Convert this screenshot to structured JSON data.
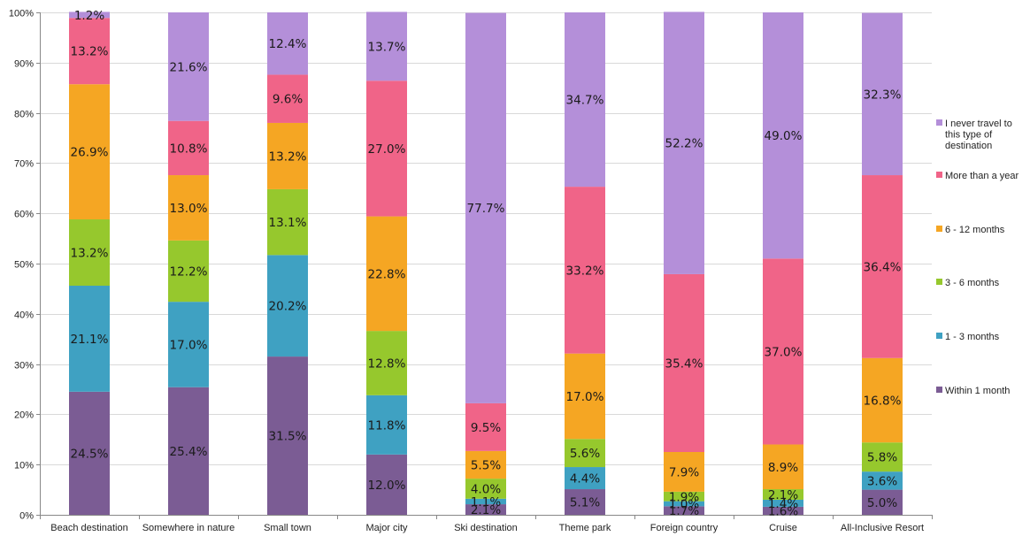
{
  "chart_data": {
    "type": "bar",
    "stacked": true,
    "normalized": true,
    "categories": [
      "Beach destination",
      "Somewhere in nature",
      "Small town",
      "Major city",
      "Ski destination",
      "Theme park",
      "Foreign country",
      "Cruise",
      "All-Inclusive Resort"
    ],
    "ylim": [
      0,
      100
    ],
    "yticks": [
      "0%",
      "10%",
      "20%",
      "30%",
      "40%",
      "50%",
      "60%",
      "70%",
      "80%",
      "90%",
      "100%"
    ],
    "grid": true,
    "legend_position": "right",
    "series": [
      {
        "name": "Within 1 month",
        "color": "#7b5c94",
        "values": [
          24.5,
          25.4,
          31.5,
          12.0,
          2.1,
          5.1,
          1.7,
          1.6,
          5.0
        ],
        "labels": [
          "24.5%",
          "25.4%",
          "31.5%",
          "12.0%",
          "2.1%",
          "5.1%",
          "1.7%",
          "1.6%",
          "5.0%"
        ]
      },
      {
        "name": "1 - 3 months",
        "color": "#3fa1c2",
        "values": [
          21.1,
          17.0,
          20.2,
          11.8,
          1.1,
          4.4,
          1.0,
          1.4,
          3.6
        ],
        "labels": [
          "21.1%",
          "17.0%",
          "20.2%",
          "11.8%",
          "1.1%",
          "4.4%",
          "1.0%",
          "1.4%",
          "3.6%"
        ]
      },
      {
        "name": "3 - 6 months",
        "color": "#96c82d",
        "values": [
          13.2,
          12.2,
          13.1,
          12.8,
          4.0,
          5.6,
          1.9,
          2.1,
          5.8
        ],
        "labels": [
          "13.2%",
          "12.2%",
          "13.1%",
          "12.8%",
          "4.0%",
          "5.6%",
          "1.9%",
          "2.1%",
          "5.8%"
        ]
      },
      {
        "name": "6 - 12 months",
        "color": "#f5a623",
        "values": [
          26.9,
          13.0,
          13.2,
          22.8,
          5.5,
          17.0,
          7.9,
          8.9,
          16.8
        ],
        "labels": [
          "26.9%",
          "13.0%",
          "13.2%",
          "22.8%",
          "5.5%",
          "17.0%",
          "7.9%",
          "8.9%",
          "16.8%"
        ]
      },
      {
        "name": "More than a year",
        "color": "#f06488",
        "values": [
          13.2,
          10.8,
          9.6,
          27.0,
          9.5,
          33.2,
          35.4,
          37.0,
          36.4
        ],
        "labels": [
          "13.2%",
          "10.8%",
          "9.6%",
          "27.0%",
          "9.5%",
          "33.2%",
          "35.4%",
          "37.0%",
          "36.4%"
        ]
      },
      {
        "name": "I never travel to this type of destination",
        "legend_lines": [
          "I never travel to",
          "this type of",
          "destination"
        ],
        "color": "#b48fd9",
        "values": [
          1.2,
          21.6,
          12.4,
          13.7,
          77.7,
          34.7,
          52.2,
          49.0,
          32.3
        ],
        "labels": [
          "1.2%",
          "21.6%",
          "12.4%",
          "13.7%",
          "77.7%",
          "34.7%",
          "52.2%",
          "49.0%",
          "32.3%"
        ]
      }
    ]
  }
}
